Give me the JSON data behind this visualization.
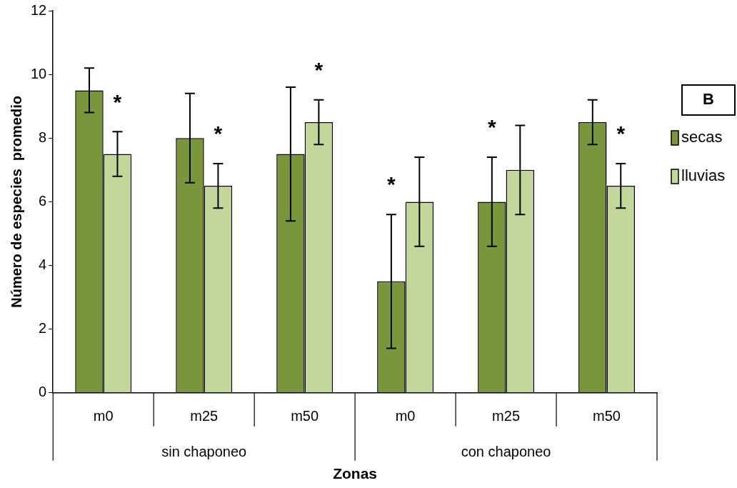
{
  "chart_data": {
    "type": "bar",
    "categories": [
      "m0",
      "m25",
      "m50",
      "m0",
      "m25",
      "m50"
    ],
    "series": [
      {
        "name": "secas",
        "color": "#7a963c",
        "values": [
          9.5,
          8,
          7.5,
          3.5,
          6,
          8.5
        ],
        "errors": [
          0.7,
          1.4,
          2.1,
          2.1,
          1.4,
          0.7
        ]
      },
      {
        "name": "lluvias",
        "color": "#c4d79b",
        "values": [
          7.5,
          6.5,
          8.5,
          6,
          7,
          6.5
        ],
        "errors": [
          0.7,
          0.7,
          0.7,
          1.4,
          1.4,
          0.7
        ]
      }
    ],
    "xlabel": "Zonas",
    "ylabel": "Número de especies  promedio",
    "ylim": [
      0,
      12
    ],
    "yticks": [
      0,
      2,
      4,
      6,
      8,
      10,
      12
    ],
    "grid": false,
    "legend": "right",
    "annotations": [
      "B",
      "sin chaponeo",
      "con chaponeo",
      "*",
      "*",
      "*",
      "*",
      "*",
      "*"
    ]
  }
}
